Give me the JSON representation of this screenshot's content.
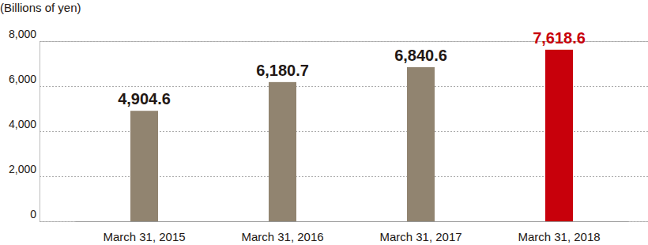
{
  "chart_data": {
    "type": "bar",
    "ylabel": "(Billions of yen)",
    "categories": [
      "March 31, 2015",
      "March 31, 2016",
      "March 31, 2017",
      "March 31, 2018"
    ],
    "values": [
      4904.6,
      6180.7,
      6840.6,
      7618.6
    ],
    "value_labels": [
      "4,904.6",
      "6,180.7",
      "6,840.6",
      "7,618.6"
    ],
    "colors": [
      "#918470",
      "#918470",
      "#918470",
      "#c8000b"
    ],
    "ylim": [
      0,
      8000
    ],
    "yticks": [
      0,
      {
        "value": 2000,
        "label": "2,000"
      },
      {
        "value": 4000,
        "label": "4,000"
      },
      {
        "value": 6000,
        "label": "6,000"
      },
      {
        "value": 8000,
        "label": "8,000"
      }
    ],
    "grid": true,
    "data_labels": true
  }
}
